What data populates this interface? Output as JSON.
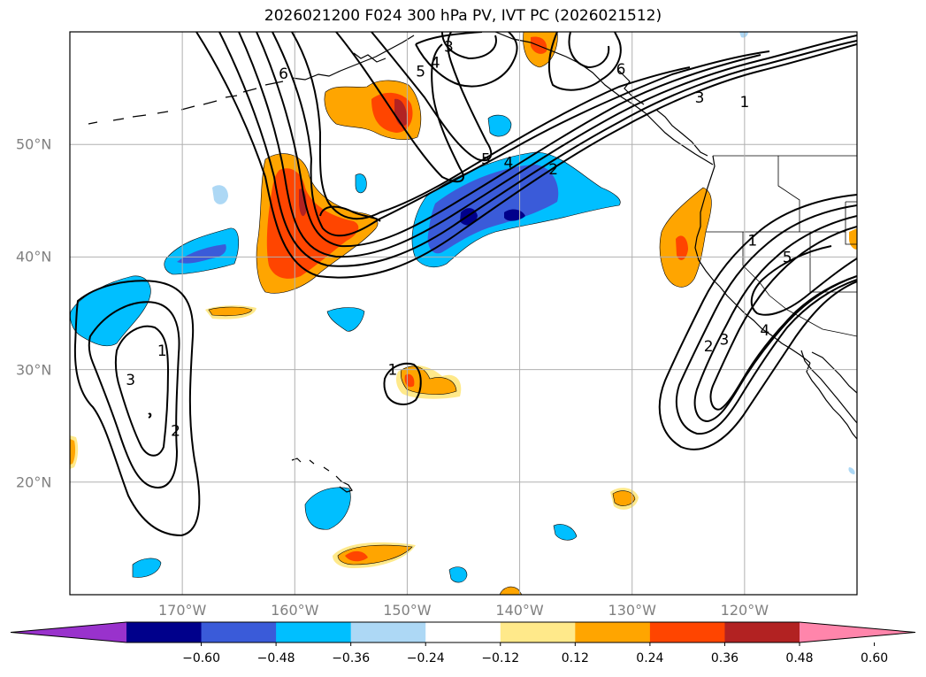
{
  "title": "2026021200 F024 300 hPa PV, IVT PC (2026021512)",
  "map": {
    "projection": "PlateCarree",
    "lon_range": [
      -180,
      -110
    ],
    "lat_range": [
      10,
      60
    ],
    "lon_ticks": [
      {
        "lon": -170,
        "label": "170°W"
      },
      {
        "lon": -160,
        "label": "160°W"
      },
      {
        "lon": -150,
        "label": "150°W"
      },
      {
        "lon": -140,
        "label": "140°W"
      },
      {
        "lon": -130,
        "label": "130°W"
      },
      {
        "lon": -120,
        "label": "120°W"
      }
    ],
    "lat_ticks": [
      {
        "lat": 50,
        "label": "50°N"
      },
      {
        "lat": 40,
        "label": "40°N"
      },
      {
        "lat": 30,
        "label": "30°N"
      },
      {
        "lat": 20,
        "label": "20°N"
      }
    ],
    "contour_labels": [
      {
        "text": "3",
        "lon": -146.3,
        "lat": 58.7
      },
      {
        "text": "4",
        "lon": -147.5,
        "lat": 57.3
      },
      {
        "text": "5",
        "lon": -148.8,
        "lat": 56.5
      },
      {
        "text": "6",
        "lon": -161.0,
        "lat": 56.3
      },
      {
        "text": "6",
        "lon": -131.0,
        "lat": 56.7
      },
      {
        "text": "3",
        "lon": -124.0,
        "lat": 54.2
      },
      {
        "text": "1",
        "lon": -120.0,
        "lat": 53.8
      },
      {
        "text": "5",
        "lon": -143.0,
        "lat": 48.7
      },
      {
        "text": "4",
        "lon": -141.0,
        "lat": 48.4
      },
      {
        "text": "2",
        "lon": -137.0,
        "lat": 47.8
      },
      {
        "text": "1",
        "lon": -119.3,
        "lat": 41.5
      },
      {
        "text": "5",
        "lon": -116.2,
        "lat": 40.0
      },
      {
        "text": "4",
        "lon": -118.2,
        "lat": 33.5
      },
      {
        "text": "3",
        "lon": -121.8,
        "lat": 32.7
      },
      {
        "text": "2",
        "lon": -123.2,
        "lat": 32.1
      },
      {
        "text": "1",
        "lon": -171.8,
        "lat": 31.7
      },
      {
        "text": "1",
        "lon": -151.3,
        "lat": 30.0
      },
      {
        "text": "3",
        "lon": -174.6,
        "lat": 29.1
      },
      {
        "text": "2",
        "lon": -170.6,
        "lat": 24.6
      }
    ]
  },
  "colorbar": {
    "boundaries": [
      "−0.60",
      "−0.48",
      "−0.36",
      "−0.24",
      "−0.12",
      "0.12",
      "0.24",
      "0.36",
      "0.48",
      "0.60"
    ],
    "colors": [
      "#9932cc",
      "#00008b",
      "#3a5bd9",
      "#00bfff",
      "#add8f5",
      "#ffffff",
      "#ffe98a",
      "#ffa500",
      "#ff4500",
      "#b22222",
      "#ff85ab"
    ]
  },
  "legend_colors": {
    "positive_1": "#ffe98a",
    "positive_2": "#ffa500",
    "positive_3": "#ff4500",
    "positive_4": "#b22222",
    "negative_1": "#add8f5",
    "negative_2": "#00bfff",
    "negative_3": "#3a5bd9",
    "negative_4": "#00008b"
  }
}
